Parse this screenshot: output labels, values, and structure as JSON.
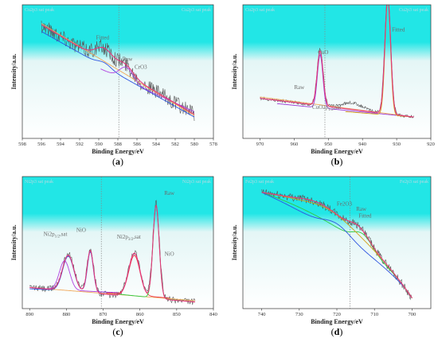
{
  "colors": {
    "bg_top": "#22e6e6",
    "bg_bottom": "#e4f6f6",
    "raw": "#555555",
    "fit": "#e6357a",
    "background": "#f0a85a",
    "dashed": "#888888"
  },
  "chart_data": [
    {
      "type": "line",
      "panel_label": "a",
      "xlabel": "Binding Energy/eV",
      "ylabel": "Intensity/a.u.",
      "xlim": [
        598,
        578
      ],
      "xticks": [
        598,
        596,
        594,
        592,
        590,
        588,
        586,
        584,
        582,
        580,
        578
      ],
      "reference_line": 587.9,
      "corner_left": "Cu2p3 sat peak",
      "corner_right": "Cu2p3 sat peak",
      "annotations": [
        {
          "text": "Fitted",
          "x": 589.6,
          "y": 0.74
        },
        {
          "text": "Raw",
          "x": 587.0,
          "y": 0.58
        },
        {
          "text": "CrO3",
          "x": 585.6,
          "y": 0.52
        }
      ],
      "curves": [
        {
          "role": "raw",
          "kind": "raw",
          "x0": 596.0,
          "x1": 580.0,
          "y_start": 0.85,
          "y_end": 0.18,
          "noise": 0.06,
          "peaks": [
            {
              "c": 589.4,
              "a": 0.1,
              "w": 0.9
            },
            {
              "c": 587.2,
              "a": 0.07,
              "w": 0.8
            }
          ]
        },
        {
          "role": "background",
          "kind": "linear",
          "x0": 596.0,
          "x1": 580.0,
          "y_start": 0.86,
          "y_end": 0.17
        },
        {
          "role": "component",
          "color": "#2f55e0",
          "kind": "sum",
          "x0": 596.0,
          "x1": 580.0,
          "y_start": 0.8,
          "y_end": 0.16,
          "peaks": [
            {
              "c": 589.4,
              "a": 0.03,
              "w": 0.7
            }
          ]
        },
        {
          "role": "component",
          "color": "#b040e0",
          "kind": "sum",
          "x0": 589.8,
          "x1": 580.0,
          "y_start": 0.52,
          "y_end": 0.2,
          "peaks": [
            {
              "c": 587.1,
              "a": 0.1,
              "w": 0.7
            }
          ]
        },
        {
          "role": "fit",
          "kind": "sum",
          "x0": 596.0,
          "x1": 580.0,
          "y_start": 0.85,
          "y_end": 0.18,
          "peaks": [
            {
              "c": 589.4,
              "a": 0.1,
              "w": 0.9
            },
            {
              "c": 587.2,
              "a": 0.07,
              "w": 0.8
            }
          ]
        }
      ]
    },
    {
      "type": "line",
      "panel_label": "b",
      "xlabel": "Binding Energy/eV",
      "ylabel": "Intensity/a.u.",
      "xlim": [
        975,
        920
      ],
      "xticks": [
        970,
        960,
        950,
        940,
        930,
        920
      ],
      "reference_line": 951.0,
      "corner_left": "Cu2p3 sat peak",
      "corner_right": "Cu2p3 sat peak",
      "annotations": [
        {
          "text": "Raw",
          "x": 958.5,
          "y": 0.37
        },
        {
          "text": "CuO",
          "x": 951.5,
          "y": 0.63
        },
        {
          "text": "CuO2p",
          "x": 950.5,
          "y": 0.22,
          "sub": "1/2",
          "suffix": "sat"
        },
        {
          "text": "Fitted",
          "x": 929.5,
          "y": 0.8
        }
      ],
      "curves": [
        {
          "role": "raw",
          "kind": "raw",
          "x0": 970.0,
          "x1": 925.0,
          "y_start": 0.3,
          "y_end": 0.16,
          "noise": 0.012,
          "peaks": [
            {
              "c": 952.4,
              "a": 0.42,
              "w": 0.9
            },
            {
              "c": 932.6,
              "a": 0.88,
              "w": 0.9
            },
            {
              "c": 943.0,
              "a": 0.05,
              "w": 3.0
            }
          ]
        },
        {
          "role": "background",
          "kind": "linear",
          "x0": 970.0,
          "x1": 925.0,
          "y_start": 0.31,
          "y_end": 0.16
        },
        {
          "role": "component",
          "color": "#9a3ad6",
          "kind": "sum",
          "x0": 965.0,
          "x1": 925.0,
          "y_start": 0.26,
          "y_end": 0.16,
          "peaks": [
            {
              "c": 952.4,
              "a": 0.4,
              "w": 0.8
            }
          ]
        },
        {
          "role": "component",
          "color": "#d4a017",
          "kind": "sum",
          "x0": 945.0,
          "x1": 925.0,
          "y_start": 0.2,
          "y_end": 0.16,
          "peaks": [
            {
              "c": 932.6,
              "a": 0.86,
              "w": 0.8
            }
          ]
        },
        {
          "role": "fit",
          "kind": "sum",
          "x0": 970.0,
          "x1": 925.0,
          "y_start": 0.3,
          "y_end": 0.16,
          "peaks": [
            {
              "c": 952.4,
              "a": 0.41,
              "w": 0.85
            },
            {
              "c": 932.6,
              "a": 0.87,
              "w": 0.85
            }
          ]
        }
      ]
    },
    {
      "type": "line",
      "panel_label": "c",
      "xlabel": "Binding Energy/eV",
      "ylabel": "Intensity/a.u.",
      "xlim": [
        892,
        840
      ],
      "xticks": [
        890,
        880,
        870,
        860,
        850,
        840
      ],
      "reference_line": 870.5,
      "corner_left": "Ni2p3 sat peak",
      "corner_right": "Ni2p3 sat peak",
      "annotations": [
        {
          "text": "Ni2p",
          "x": 883.0,
          "y": 0.55,
          "sub": "1/2",
          "suffix": "sat"
        },
        {
          "text": "NiO",
          "x": 876.0,
          "y": 0.58
        },
        {
          "text": "Ni2p",
          "x": 863.0,
          "y": 0.53,
          "sub": "3/2",
          "suffix": "sat"
        },
        {
          "text": "Raw",
          "x": 852.0,
          "y": 0.86
        },
        {
          "text": "NiO",
          "x": 852.0,
          "y": 0.4
        }
      ],
      "curves": [
        {
          "role": "raw",
          "kind": "raw",
          "x0": 890.0,
          "x1": 845.0,
          "y_start": 0.16,
          "y_end": 0.05,
          "noise": 0.025,
          "peaks": [
            {
              "c": 879.5,
              "a": 0.28,
              "w": 1.6
            },
            {
              "c": 873.5,
              "a": 0.33,
              "w": 0.9
            },
            {
              "c": 861.5,
              "a": 0.34,
              "w": 1.6
            },
            {
              "c": 855.6,
              "a": 0.72,
              "w": 0.9
            }
          ]
        },
        {
          "role": "background",
          "kind": "linear",
          "x0": 890.0,
          "x1": 845.0,
          "y_start": 0.16,
          "y_end": 0.06
        },
        {
          "role": "component",
          "color": "#2f55e0",
          "kind": "sum",
          "x0": 890.0,
          "x1": 866.0,
          "y_start": 0.15,
          "y_end": 0.12,
          "peaks": [
            {
              "c": 879.5,
              "a": 0.26,
              "w": 1.5
            },
            {
              "c": 873.5,
              "a": 0.3,
              "w": 0.8
            }
          ]
        },
        {
          "role": "component",
          "color": "#b040e0",
          "kind": "sum",
          "x0": 886.0,
          "x1": 866.0,
          "y_start": 0.15,
          "y_end": 0.12,
          "peaks": [
            {
              "c": 880.5,
              "a": 0.22,
              "w": 1.4
            }
          ]
        },
        {
          "role": "component",
          "color": "#ee3344",
          "kind": "sum",
          "x0": 869.0,
          "x1": 852.0,
          "y_start": 0.12,
          "y_end": 0.08,
          "peaks": [
            {
              "c": 861.5,
              "a": 0.3,
              "w": 1.5
            }
          ]
        },
        {
          "role": "component",
          "color": "#2ecc40",
          "kind": "sum",
          "x0": 866.0,
          "x1": 845.0,
          "y_start": 0.11,
          "y_end": 0.05,
          "peaks": [
            {
              "c": 855.6,
              "a": 0.7,
              "w": 0.85
            }
          ]
        },
        {
          "role": "fit",
          "kind": "sum",
          "x0": 890.0,
          "x1": 845.0,
          "y_start": 0.16,
          "y_end": 0.05,
          "peaks": [
            {
              "c": 879.5,
              "a": 0.27,
              "w": 1.55
            },
            {
              "c": 873.5,
              "a": 0.32,
              "w": 0.85
            },
            {
              "c": 861.5,
              "a": 0.33,
              "w": 1.55
            },
            {
              "c": 855.6,
              "a": 0.71,
              "w": 0.85
            }
          ]
        }
      ]
    },
    {
      "type": "line",
      "panel_label": "d",
      "xlabel": "Binding Energy/eV",
      "ylabel": "Intensity/a.u.",
      "xlim": [
        745,
        695
      ],
      "xticks": [
        740,
        730,
        720,
        710,
        700
      ],
      "reference_line": 716.5,
      "corner_left": "Fe2p3 sat peak",
      "corner_right": "Fe2p3 sat peak",
      "annotations": [
        {
          "text": "Fe2O3",
          "x": 718.0,
          "y": 0.78
        },
        {
          "text": "Raw",
          "x": 713.5,
          "y": 0.74
        },
        {
          "text": "Fitted",
          "x": 712.5,
          "y": 0.69
        }
      ],
      "curves": [
        {
          "role": "raw",
          "kind": "raw",
          "x0": 740.0,
          "x1": 700.0,
          "y_start": 0.88,
          "y_end": 0.04,
          "noise": 0.03,
          "curve": "fe"
        },
        {
          "role": "background",
          "kind": "fe",
          "x0": 740.0,
          "x1": 700.0,
          "y_start": 0.88,
          "y_end": 0.04
        },
        {
          "role": "component",
          "color": "#2ecc40",
          "kind": "fe_green",
          "x0": 740.0,
          "x1": 700.0,
          "y_start": 0.84,
          "y_end": 0.02
        },
        {
          "role": "component",
          "color": "#2f55e0",
          "kind": "fe_blue",
          "x0": 740.0,
          "x1": 700.0,
          "y_start": 0.86,
          "y_end": 0.02
        },
        {
          "role": "component",
          "color": "#d4a017",
          "kind": "fe_yellow",
          "x0": 740.0,
          "x1": 700.0,
          "y_start": 0.87,
          "y_end": 0.03
        },
        {
          "role": "fit",
          "kind": "fe",
          "x0": 740.0,
          "x1": 700.0,
          "y_start": 0.88,
          "y_end": 0.04
        }
      ]
    }
  ]
}
